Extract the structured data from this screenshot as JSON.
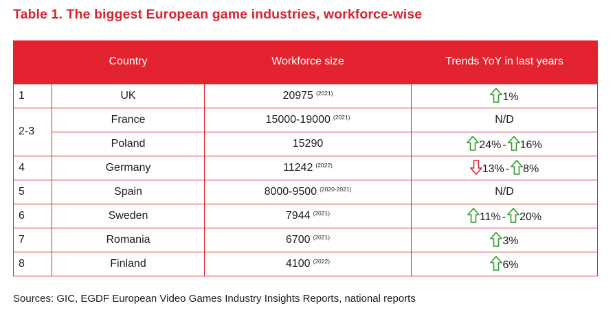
{
  "title": "Table 1. The biggest European game industries, workforce-wise",
  "colors": {
    "accent": "#e3232f",
    "arrow_up": "#2e9a2e",
    "arrow_down": "#d9232e"
  },
  "headers": {
    "rank": "",
    "country": "Country",
    "workforce": "Workforce size",
    "trends": "Trends YoY in last years"
  },
  "rows": [
    {
      "rank": "1",
      "country": "UK",
      "size": "20975",
      "year": "(2021)",
      "trend": [
        {
          "dir": "up",
          "icon": "arrow-up-icon",
          "value": "1%"
        }
      ]
    },
    {
      "rank": "2-3",
      "country": "France",
      "size": "15000-19000",
      "year": "(2021)",
      "trend_text": "N/D"
    },
    {
      "rank": "",
      "country": "Poland",
      "size": "15290",
      "year": "",
      "trend": [
        {
          "dir": "up",
          "icon": "arrow-up-icon",
          "value": "24%"
        },
        {
          "dir": "up",
          "icon": "arrow-up-icon",
          "value": "16%"
        }
      ]
    },
    {
      "rank": "4",
      "country": "Germany",
      "size": "11242",
      "year": "(2022)",
      "trend": [
        {
          "dir": "down",
          "icon": "arrow-down-icon",
          "value": "13%"
        },
        {
          "dir": "up",
          "icon": "arrow-up-icon",
          "value": "8%"
        }
      ]
    },
    {
      "rank": "5",
      "country": "Spain",
      "size": "8000-9500",
      "year": "(2020-2021)",
      "trend_text": "N/D"
    },
    {
      "rank": "6",
      "country": "Sweden",
      "size": "7944",
      "year": "(2021)",
      "trend": [
        {
          "dir": "up",
          "icon": "arrow-up-icon",
          "value": "11%"
        },
        {
          "dir": "up",
          "icon": "arrow-up-icon",
          "value": "20%"
        }
      ]
    },
    {
      "rank": "7",
      "country": "Romania",
      "size": "6700",
      "year": "(2021)",
      "trend": [
        {
          "dir": "up",
          "icon": "arrow-up-icon",
          "value": "3%"
        }
      ]
    },
    {
      "rank": "8",
      "country": "Finland",
      "size": "4100",
      "year": "(2022)",
      "trend": [
        {
          "dir": "up",
          "icon": "arrow-up-icon",
          "value": "6%"
        }
      ]
    }
  ],
  "trend_separator": "-",
  "source": "Sources: GIC, EGDF European Video Games Industry Insights Reports, national reports"
}
